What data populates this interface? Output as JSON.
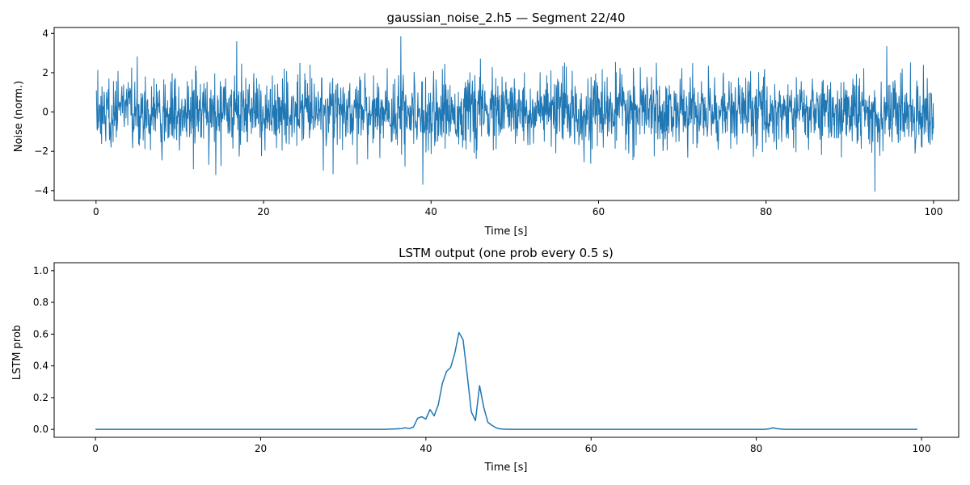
{
  "colors": {
    "line": "#1f77b4",
    "axes": "#000000",
    "background": "#ffffff"
  },
  "chart_data": [
    {
      "type": "line",
      "title": "gaussian_noise_2.h5 — Segment 22/40",
      "xlabel": "Time [s]",
      "ylabel": "Noise (norm.)",
      "xlim": [
        -5,
        103
      ],
      "ylim": [
        -4.5,
        4.3
      ],
      "xticks": [
        0,
        20,
        40,
        60,
        80,
        100
      ],
      "yticks": [
        -4,
        -2,
        0,
        2,
        4
      ],
      "xtick_labels": [
        "0",
        "20",
        "40",
        "60",
        "80",
        "100"
      ],
      "ytick_labels": [
        "−4",
        "−2",
        "0",
        "2",
        "4"
      ],
      "grid": false,
      "noise": {
        "x_range": [
          0,
          100
        ],
        "std": 0.9,
        "sample_count": 2400,
        "notable_points": [
          {
            "x": 16.8,
            "y": 3.6
          },
          {
            "x": 36.4,
            "y": 3.85
          },
          {
            "x": 39.0,
            "y": -3.7
          },
          {
            "x": 93.0,
            "y": -4.05
          },
          {
            "x": 94.4,
            "y": 3.35
          }
        ]
      }
    },
    {
      "type": "line",
      "title": "LSTM output (one prob every 0.5 s)",
      "xlabel": "Time [s]",
      "ylabel": "LSTM prob",
      "xlim": [
        -5,
        104.5
      ],
      "ylim": [
        -0.05,
        1.05
      ],
      "xticks": [
        0,
        20,
        40,
        60,
        80,
        100
      ],
      "yticks": [
        0.0,
        0.2,
        0.4,
        0.6,
        0.8,
        1.0
      ],
      "xtick_labels": [
        "0",
        "20",
        "40",
        "60",
        "80",
        "100"
      ],
      "ytick_labels": [
        "0.0",
        "0.2",
        "0.4",
        "0.6",
        "0.8",
        "1.0"
      ],
      "grid": false,
      "series": [
        {
          "x": [
            0,
            35,
            36,
            37,
            37.5,
            38,
            38.5,
            39,
            39.5,
            40,
            40.5,
            41,
            41.5,
            42,
            42.5,
            43,
            43.5,
            44,
            44.5,
            45,
            45.5,
            46,
            46.5,
            47,
            47.5,
            48,
            48.5,
            49,
            50,
            81,
            81.5,
            82,
            82.5,
            83,
            83.5,
            99.5
          ],
          "y": [
            0,
            0,
            0.002,
            0.005,
            0.01,
            0.005,
            0.015,
            0.07,
            0.08,
            0.065,
            0.125,
            0.085,
            0.155,
            0.29,
            0.365,
            0.39,
            0.48,
            0.61,
            0.565,
            0.345,
            0.11,
            0.055,
            0.275,
            0.14,
            0.045,
            0.025,
            0.01,
            0.003,
            0,
            0,
            0.003,
            0.01,
            0.004,
            0.002,
            0,
            0
          ]
        }
      ]
    }
  ]
}
